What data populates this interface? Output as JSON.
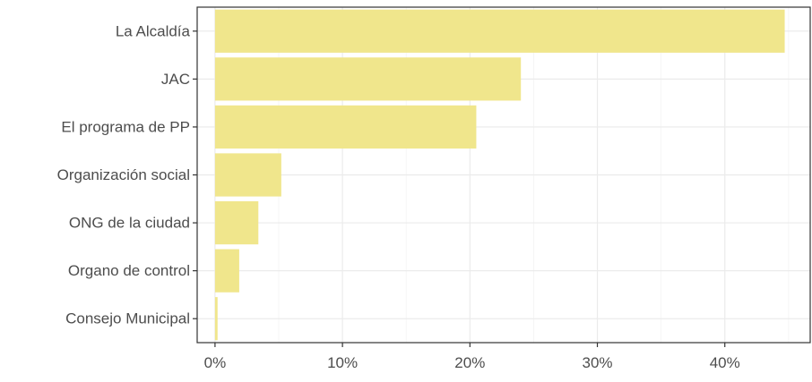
{
  "chart_data": {
    "type": "bar",
    "orientation": "horizontal",
    "categories": [
      "La Alcaldía",
      "JAC",
      "El programa de PP",
      "Organización social",
      "ONG de la ciudad",
      "Organo de control",
      "Consejo Municipal"
    ],
    "values": [
      44.7,
      24.0,
      20.5,
      5.2,
      3.4,
      1.9,
      0.2
    ],
    "unit": "%",
    "xlim": [
      -1.4,
      46.7
    ],
    "xticks": [
      0,
      10,
      20,
      30,
      40
    ],
    "xtick_labels": [
      "0%",
      "10%",
      "20%",
      "30%",
      "40%"
    ],
    "bar_color": "#f0e68c",
    "grid": true,
    "title": "",
    "xlabel": "",
    "ylabel": ""
  }
}
